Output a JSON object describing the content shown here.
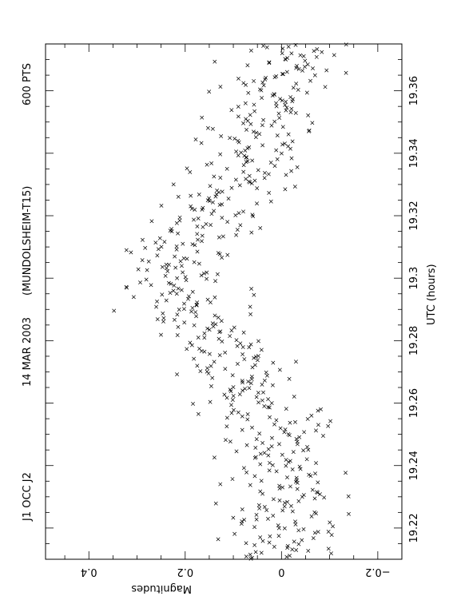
{
  "chart_data": {
    "type": "scatter",
    "orientation": "rotated-90",
    "header": {
      "object": "J1 OCC J2",
      "date": "14 MAR 2003",
      "site": "(MUNDOLSHEIM-T15)",
      "count": "600 PTS"
    },
    "xlabel": "UTC (hours)",
    "ylabel": "Magnitudes",
    "xlim": [
      19.21,
      19.375
    ],
    "ylim": [
      -0.25,
      0.49
    ],
    "y_inverted": true,
    "x_ticks": [
      "19.22",
      "19.24",
      "19.26",
      "19.28",
      "19.3",
      "19.32",
      "19.34",
      "19.36"
    ],
    "y_ticks": [
      "−0.2",
      "0",
      "0.2",
      "0.4"
    ],
    "marker": "x",
    "grid": false,
    "profile": {
      "description_free": true,
      "x": [
        19.21,
        19.22,
        19.23,
        19.24,
        19.25,
        19.26,
        19.27,
        19.28,
        19.29,
        19.3,
        19.31,
        19.32,
        19.33,
        19.34,
        19.35,
        19.36,
        19.375
      ],
      "y": [
        0.0,
        -0.01,
        0.0,
        -0.01,
        0.02,
        0.06,
        0.09,
        0.14,
        0.19,
        0.23,
        0.21,
        0.15,
        0.09,
        0.05,
        0.02,
        0.0,
        -0.02
      ]
    },
    "spread": 0.06,
    "n_points": 600
  }
}
